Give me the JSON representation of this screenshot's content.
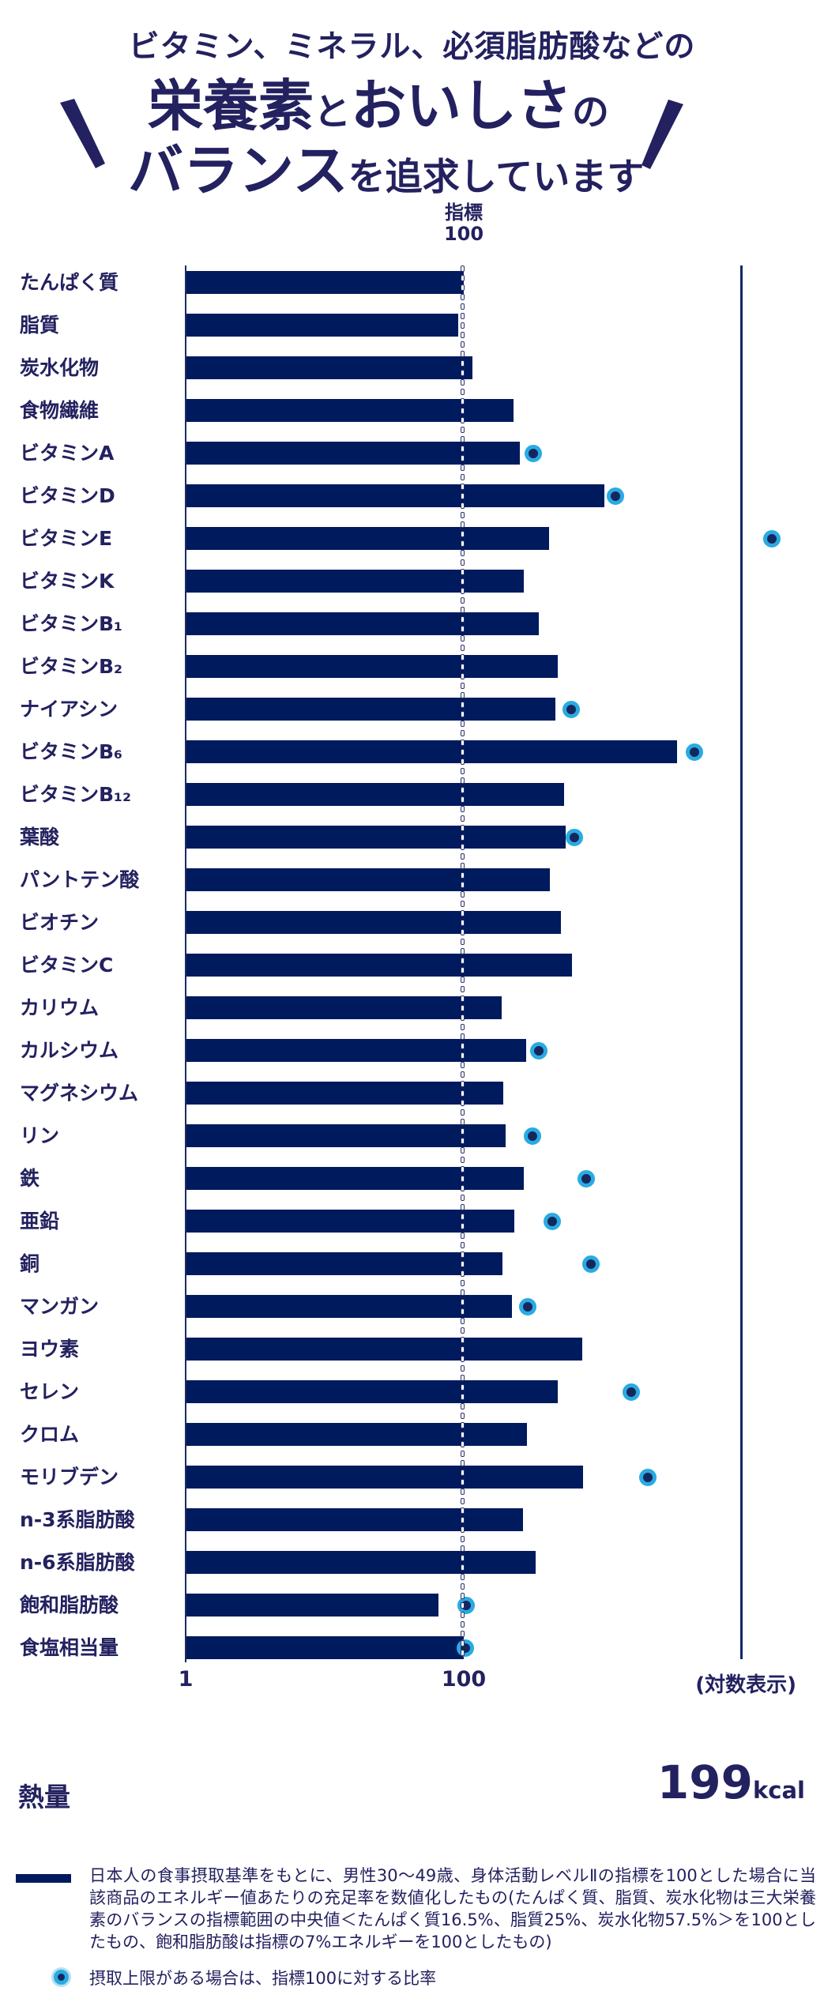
{
  "title": {
    "line1": "ビタミン、ミネラル、必須脂肪酸などの",
    "line2_segments": [
      {
        "text": "栄養素",
        "size": "big"
      },
      {
        "text": "と",
        "size": "small"
      },
      {
        "text": "おいしさ",
        "size": "big"
      },
      {
        "text": "の",
        "size": "small"
      }
    ],
    "line3_segments": [
      {
        "text": "バランス",
        "size": "big"
      },
      {
        "text": "を追求しています",
        "size": "small"
      }
    ]
  },
  "axis_header": {
    "line1": "指標",
    "line2": "100"
  },
  "x_axis": {
    "tick_start": "1",
    "tick_index": "100",
    "note": "(対数表示)"
  },
  "energy": {
    "label": "熱量",
    "value": "199",
    "unit": "kcal"
  },
  "legend": {
    "items": [
      {
        "swatch": "bar",
        "text": "日本人の食事摂取基準をもとに、男性30～49歳、身体活動レベルⅡの指標を100とした場合に当該商品のエネルギー値あたりの充足率を数値化したもの(たんぱく質、脂質、炭水化物は三大栄養素のバランスの指標範囲の中央値＜たんぱく質16.5%、脂質25%、炭水化物57.5%＞を100としたもの、飽和脂肪酸は指標の7%エネルギーを100としたもの)"
      },
      {
        "swatch": "circle",
        "text": "摂取上限がある場合は、指標100に対する比率"
      }
    ]
  },
  "colors": {
    "background": "#ffffff",
    "text_navy": "#23215f",
    "bar_navy": "#001a5e",
    "circle_ring": "#29abe2",
    "circle_center": "#16275e"
  },
  "chart_data": {
    "type": "bar",
    "orientation": "horizontal",
    "x_scale": "log10",
    "x_range": [
      1,
      10000
    ],
    "x_ticks": [
      1,
      100
    ],
    "x_note": "(対数表示)",
    "index_line": 100,
    "value_meaning": "充足率指数(指標100)",
    "marker_meaning": "摂取上限(指標100に対する比率)",
    "items": [
      {
        "label": "たんぱく質",
        "value": 100,
        "upper_limit": null
      },
      {
        "label": "脂質",
        "value": 91,
        "upper_limit": null
      },
      {
        "label": "炭水化物",
        "value": 115,
        "upper_limit": null
      },
      {
        "label": "食物繊維",
        "value": 228,
        "upper_limit": null
      },
      {
        "label": "ビタミンA",
        "value": 252,
        "upper_limit": 315
      },
      {
        "label": "ビタミンD",
        "value": 1020,
        "upper_limit": 1230
      },
      {
        "label": "ビタミンE",
        "value": 410,
        "upper_limit": 16500
      },
      {
        "label": "ビタミンK",
        "value": 270,
        "upper_limit": null
      },
      {
        "label": "ビタミンB₁",
        "value": 348,
        "upper_limit": null
      },
      {
        "label": "ビタミンB₂",
        "value": 473,
        "upper_limit": null
      },
      {
        "label": "ナイアシン",
        "value": 456,
        "upper_limit": 593
      },
      {
        "label": "ビタミンB₆",
        "value": 3400,
        "upper_limit": 4540
      },
      {
        "label": "ビタミンB₁₂",
        "value": 524,
        "upper_limit": null
      },
      {
        "label": "葉酸",
        "value": 540,
        "upper_limit": 625
      },
      {
        "label": "パントテン酸",
        "value": 415,
        "upper_limit": null
      },
      {
        "label": "ビオチン",
        "value": 500,
        "upper_limit": null
      },
      {
        "label": "ビタミンC",
        "value": 600,
        "upper_limit": null
      },
      {
        "label": "カリウム",
        "value": 187,
        "upper_limit": null
      },
      {
        "label": "カルシウム",
        "value": 281,
        "upper_limit": 345
      },
      {
        "label": "マグネシウム",
        "value": 192,
        "upper_limit": null
      },
      {
        "label": "リン",
        "value": 200,
        "upper_limit": 312
      },
      {
        "label": "鉄",
        "value": 270,
        "upper_limit": 763
      },
      {
        "label": "亜鉛",
        "value": 231,
        "upper_limit": 433
      },
      {
        "label": "銅",
        "value": 189,
        "upper_limit": 822
      },
      {
        "label": "マンガン",
        "value": 223,
        "upper_limit": 289
      },
      {
        "label": "ヨウ素",
        "value": 712,
        "upper_limit": null
      },
      {
        "label": "セレン",
        "value": 473,
        "upper_limit": 1600
      },
      {
        "label": "クロム",
        "value": 285,
        "upper_limit": null
      },
      {
        "label": "モリブデン",
        "value": 721,
        "upper_limit": 2100
      },
      {
        "label": "n-3系脂肪酸",
        "value": 268,
        "upper_limit": null
      },
      {
        "label": "n-6系脂肪酸",
        "value": 330,
        "upper_limit": null
      },
      {
        "label": "飽和脂肪酸",
        "value": 66,
        "upper_limit": 104
      },
      {
        "label": "食塩相当量",
        "value": 100,
        "upper_limit": 103
      }
    ]
  }
}
